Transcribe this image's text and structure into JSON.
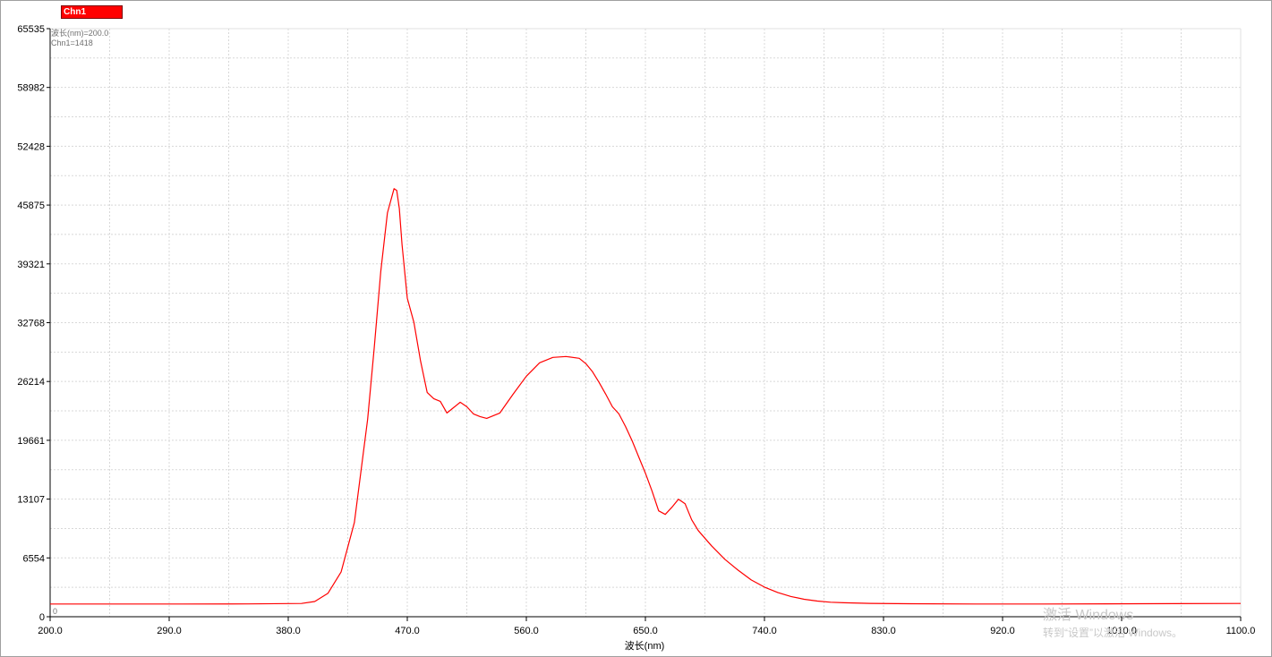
{
  "legend": {
    "label": "Chn1",
    "color": "#ff0000"
  },
  "cursor": {
    "line1": "波长(nm)=200.0",
    "line2": "Chn1=1418"
  },
  "watermark": {
    "line1": "激活 Windows",
    "line2": "转到“设置”以激活 Windows。"
  },
  "chart_data": {
    "type": "line",
    "title": "",
    "xlabel": "波长(nm)",
    "ylabel": "",
    "xlim": [
      200.0,
      1100.0
    ],
    "ylim": [
      0,
      65535
    ],
    "x_ticks": [
      200.0,
      290.0,
      380.0,
      470.0,
      560.0,
      650.0,
      740.0,
      830.0,
      920.0,
      1010.0,
      1100.0
    ],
    "x_tick_labels": [
      "200.0",
      "290.0",
      "380.0",
      "470.0",
      "560.0",
      "650.0",
      "740.0",
      "830.0",
      "920.0",
      "1010.0",
      "1100.0"
    ],
    "y_ticks": [
      0,
      6554,
      13107,
      19661,
      26214,
      32768,
      39321,
      45875,
      52428,
      58982,
      65535
    ],
    "y_tick_labels": [
      "0",
      "6554",
      "13107",
      "19661",
      "26214",
      "32768",
      "39321",
      "45875",
      "52428",
      "58982",
      "65535"
    ],
    "origin_label": "0",
    "grid": true,
    "legend_position": "top-left",
    "series": [
      {
        "name": "Chn1",
        "color": "#ff0000",
        "x": [
          200,
          250,
          300,
          350,
          390,
          400,
          410,
          420,
          430,
          440,
          445,
          450,
          455,
          460,
          462,
          464,
          466,
          470,
          475,
          480,
          485,
          490,
          495,
          500,
          505,
          510,
          515,
          520,
          525,
          530,
          540,
          550,
          560,
          570,
          580,
          590,
          600,
          605,
          610,
          615,
          620,
          625,
          630,
          635,
          640,
          645,
          650,
          655,
          660,
          665,
          670,
          675,
          680,
          685,
          690,
          700,
          710,
          720,
          730,
          740,
          750,
          760,
          770,
          780,
          790,
          800,
          820,
          850,
          900,
          950,
          1000,
          1050,
          1100
        ],
        "y": [
          1418,
          1418,
          1420,
          1425,
          1480,
          1700,
          2600,
          5000,
          10500,
          22000,
          30000,
          38500,
          45000,
          47700,
          47500,
          45500,
          41500,
          35500,
          32800,
          28500,
          25000,
          24300,
          24000,
          22700,
          23300,
          23900,
          23400,
          22600,
          22300,
          22100,
          22700,
          24800,
          26800,
          28300,
          28900,
          29000,
          28800,
          28200,
          27300,
          26100,
          24800,
          23400,
          22600,
          21200,
          19600,
          17800,
          16000,
          14000,
          11800,
          11400,
          12200,
          13100,
          12600,
          10800,
          9600,
          7900,
          6400,
          5200,
          4100,
          3300,
          2700,
          2250,
          1950,
          1750,
          1620,
          1560,
          1490,
          1450,
          1420,
          1420,
          1440,
          1460,
          1480
        ]
      }
    ]
  }
}
